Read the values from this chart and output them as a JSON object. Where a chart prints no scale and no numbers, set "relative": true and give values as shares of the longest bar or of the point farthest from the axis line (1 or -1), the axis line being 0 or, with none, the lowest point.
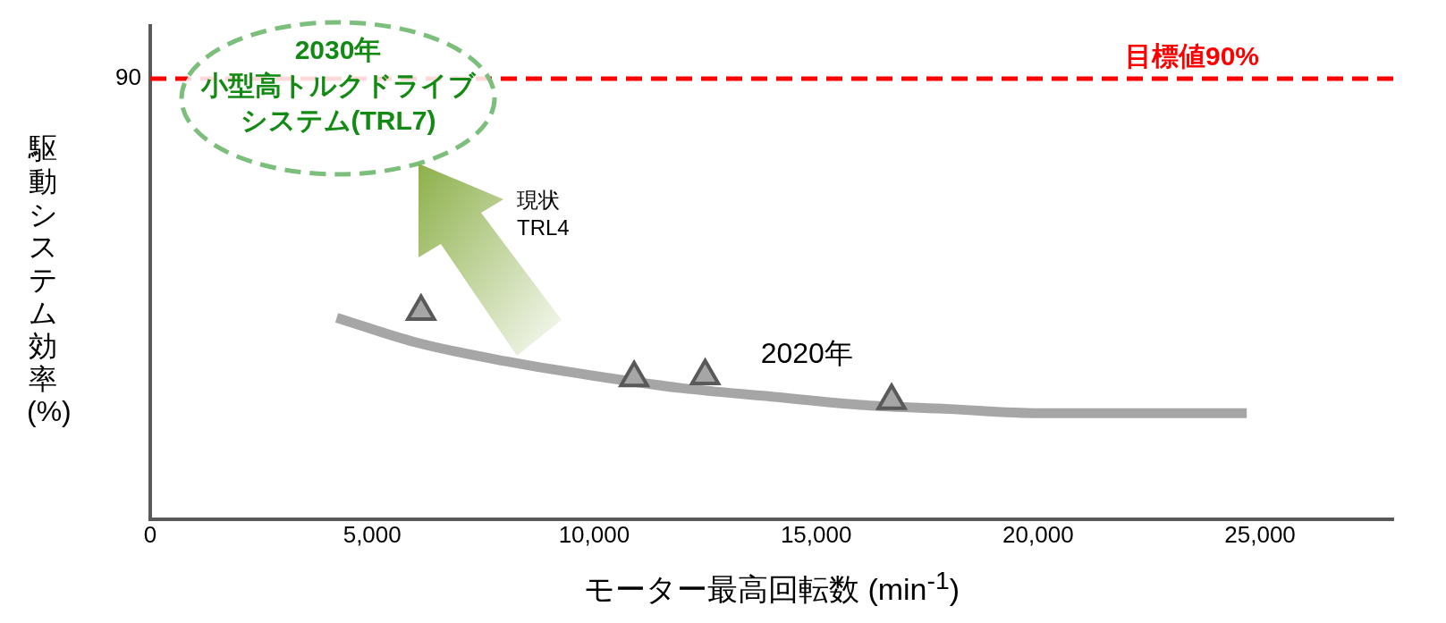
{
  "chart_data": {
    "type": "line",
    "relative": true,
    "xlabel": "モーター最高回転数 (min$^{-1}$)",
    "ylabel": "駆動システム効率(%)",
    "xlim": [
      0,
      28000
    ],
    "xticks": [
      0,
      {
        "value": 5000,
        "label": "5,000"
      },
      {
        "value": 10000,
        "label": "10,000"
      },
      {
        "value": 15000,
        "label": "15,000"
      },
      {
        "value": 20000,
        "label": "20,000"
      },
      {
        "value": 25000,
        "label": "25,000"
      }
    ],
    "series": [
      {
        "name": "2020年",
        "type": "line",
        "color": "#a6a6a6",
        "marker": "none",
        "x": [
          4200,
          6000,
          8000,
          10000,
          12000,
          14000,
          16000,
          18000,
          20000,
          22000,
          24700
        ],
        "values": [
          0.97,
          0.85,
          0.76,
          0.69,
          0.63,
          0.59,
          0.55,
          0.53,
          0.51,
          0.51,
          0.51
        ]
      },
      {
        "type": "scatter",
        "color": "#595959",
        "marker": "triangle",
        "x": [
          6100,
          10900,
          12500,
          16700
        ],
        "values": [
          1,
          0.68,
          0.69,
          0.57
        ]
      }
    ],
    "ref_lines": [
      {
        "axis": "y",
        "value": 2.12,
        "label": "目標値90%",
        "color": "#ff0000",
        "line_style": "dashed"
      }
    ],
    "annotations": [
      "90",
      "2030年",
      "小型高トルクドライブシステム(TRL7)",
      "現状\nTRL4"
    ],
    "legend": false,
    "grid": false
  }
}
